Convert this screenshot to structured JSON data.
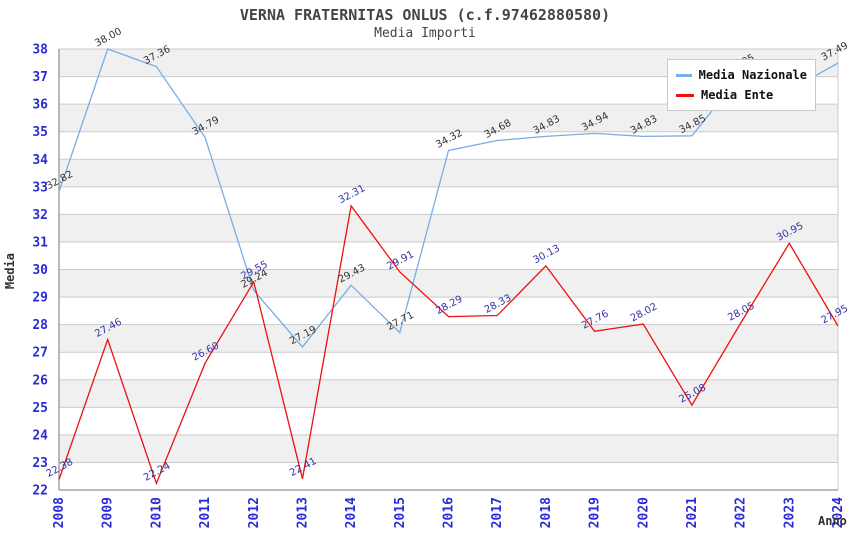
{
  "chart_data": {
    "type": "line",
    "title": "VERNA FRATERNITAS ONLUS (c.f.97462880580)",
    "subtitle": "Media Importi",
    "xlabel": "Anno",
    "ylabel": "Media",
    "ylim": [
      22,
      38
    ],
    "y_ticks": [
      22,
      23,
      24,
      25,
      26,
      27,
      28,
      29,
      30,
      31,
      32,
      33,
      34,
      35,
      36,
      37,
      38
    ],
    "grid": "horizontal gridlines with alternating gray bands",
    "legend_position": "top-right inside plot",
    "x": [
      "2008",
      "2009",
      "2010",
      "2011",
      "2012",
      "2013",
      "2014",
      "2015",
      "2016",
      "2017",
      "2018",
      "2019",
      "2020",
      "2021",
      "2022",
      "2023",
      "2024"
    ],
    "series": [
      {
        "name": "Media Nazionale",
        "color": "#79ADE6",
        "label_color": "#333333",
        "values": [
          32.82,
          38.0,
          37.36,
          34.79,
          29.24,
          27.19,
          29.43,
          27.71,
          34.32,
          34.68,
          34.83,
          34.94,
          34.83,
          34.85,
          37.05,
          36.5,
          37.49
        ],
        "labels": [
          "32.82",
          "38.00",
          "37.36",
          "34.79",
          "29.24",
          "27.19",
          "29.43",
          "27.71",
          "34.32",
          "34.68",
          "34.83",
          "34.94",
          "34.83",
          "34.85",
          "37.05",
          "",
          "37.49"
        ],
        "label_note": "2023 label is hidden behind the legend box; 2023 value estimated from line position"
      },
      {
        "name": "Media Ente",
        "color": "#EE1010",
        "label_color": "#3232A8",
        "values": [
          22.38,
          27.46,
          22.24,
          26.6,
          29.55,
          22.41,
          32.31,
          29.91,
          28.29,
          28.33,
          30.13,
          27.76,
          28.02,
          25.08,
          28.05,
          30.95,
          27.95
        ],
        "labels": [
          "22.38",
          "27.46",
          "22.24",
          "26.60",
          "29.55",
          "22.41",
          "32.31",
          "29.91",
          "28.29",
          "28.33",
          "30.13",
          "27.76",
          "28.02",
          "25.08",
          "28.05",
          "30.95",
          "27.95"
        ]
      }
    ]
  },
  "colors": {
    "background": "#FFFFFF",
    "band": "#F0F0F0",
    "gridline": "#CCCCCC",
    "axis": "#777777",
    "tick_label": "#2B2BD5",
    "title": "#444444",
    "legend_border": "#C8C8C8"
  }
}
